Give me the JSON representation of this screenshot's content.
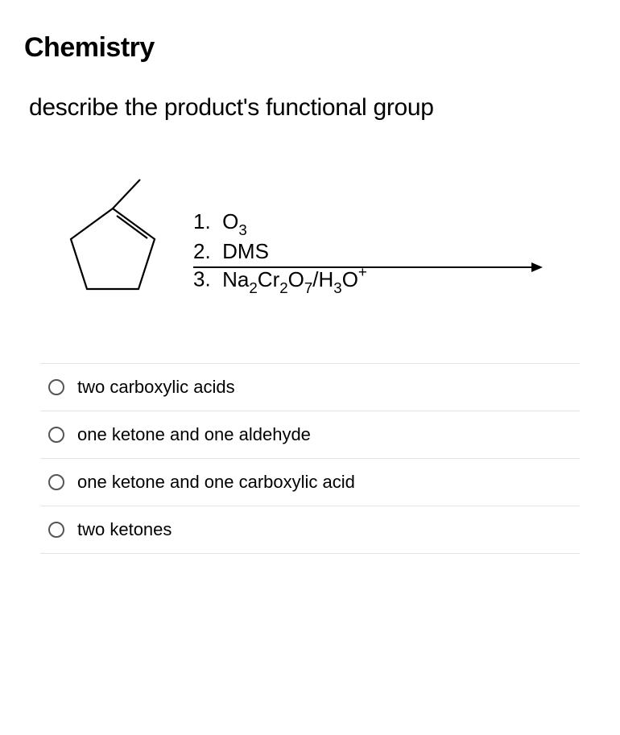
{
  "title": "Chemistry",
  "question": "describe the product's functional group",
  "reaction": {
    "reagents": [
      {
        "num": "1.",
        "formula_html": "O<span class='sub'>3</span>"
      },
      {
        "num": "2.",
        "formula_html": "DMS"
      },
      {
        "num": "3.",
        "formula_html": "Na<span class='sub'>2</span>Cr<span class='sub'>2</span>O<span class='sub'>7</span>/H<span class='sub'>3</span>O<span class='sup'>+</span>"
      }
    ],
    "arrow_color": "#000000",
    "arrow_width": 430,
    "molecule": {
      "stroke": "#000000",
      "stroke_width": 2
    }
  },
  "options": [
    {
      "label": "two carboxylic acids"
    },
    {
      "label": "one ketone and one aldehyde"
    },
    {
      "label": "one ketone and one carboxylic acid"
    },
    {
      "label": "two ketones"
    }
  ],
  "styles": {
    "text_color": "#000000",
    "border_color": "#e3e3e3",
    "radio_border": "#555555",
    "background": "#ffffff"
  }
}
